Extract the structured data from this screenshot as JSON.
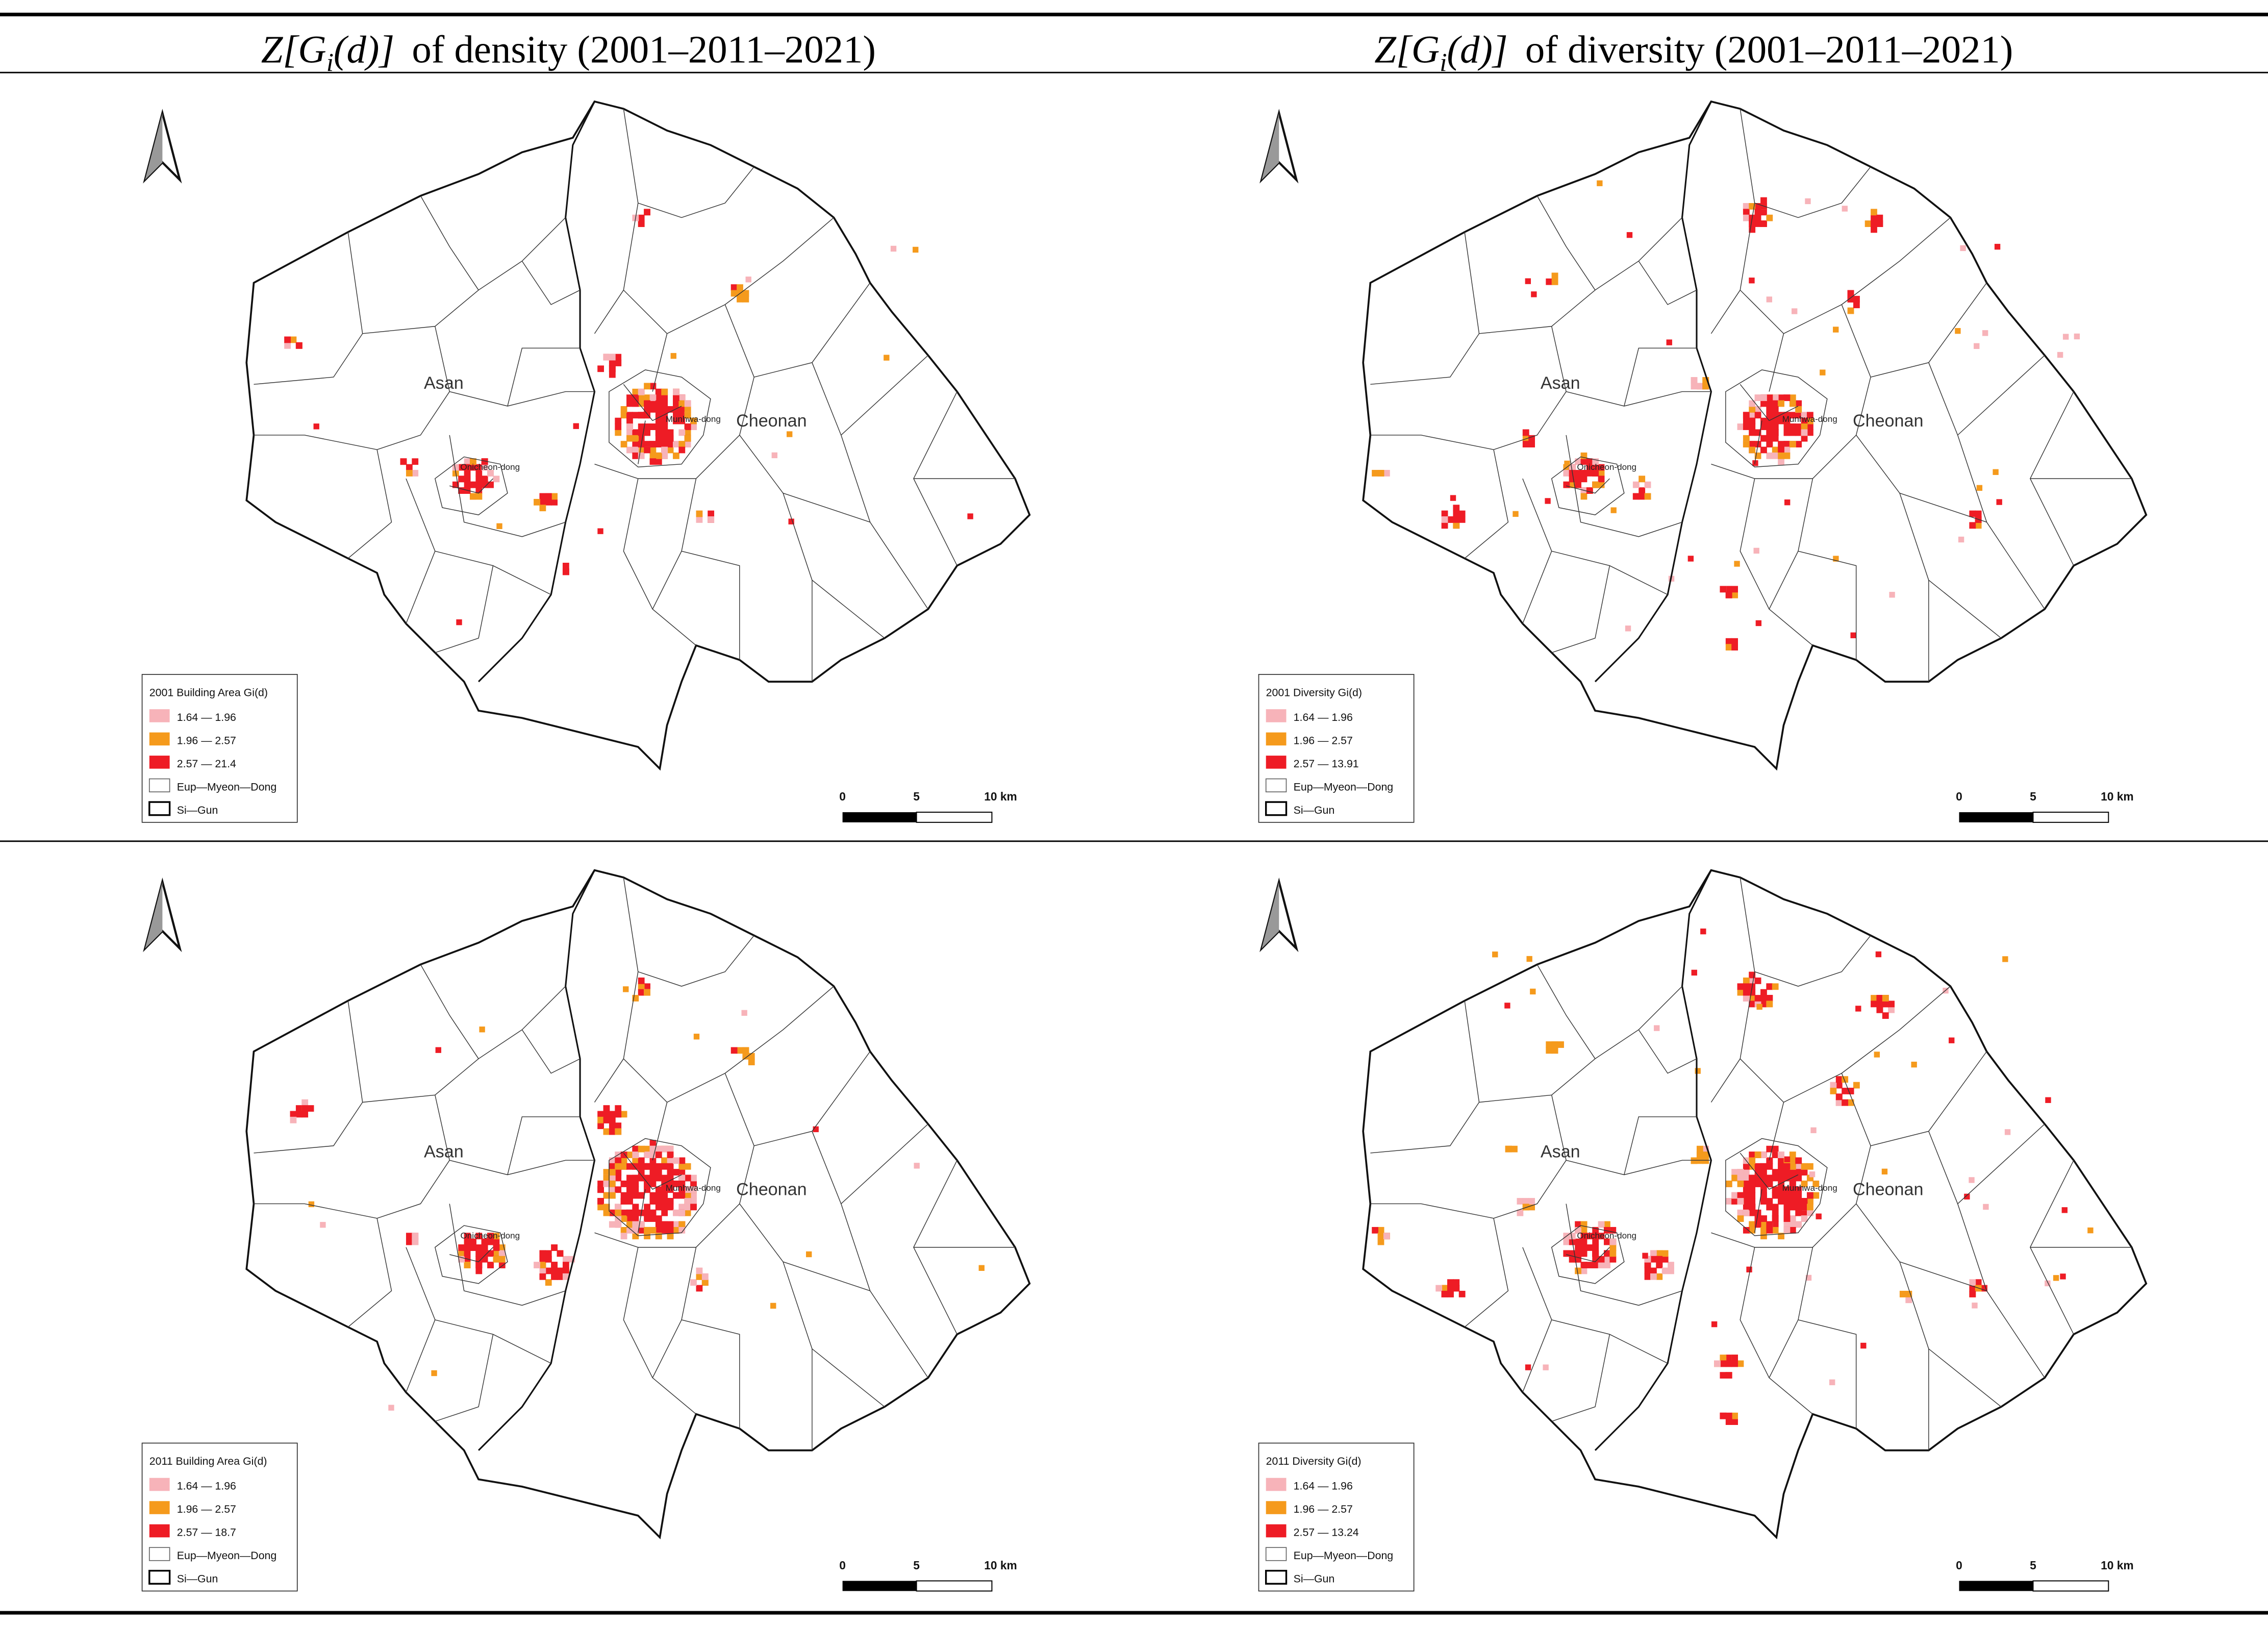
{
  "header": {
    "columns": [
      {
        "z": "Z[G",
        "sub": "i",
        "rest": "(d)]",
        "text": "of density (2001–2011–2021)"
      },
      {
        "z": "Z[G",
        "sub": "i",
        "rest": "(d)]",
        "text": "of diversity (2001–2011–2021)"
      }
    ]
  },
  "panels": [
    {
      "legend": {
        "title": "2001 Building Area Gi(d)",
        "items": [
          "1.64 — 1.96",
          "1.96 — 2.57",
          "2.57 — 21.4",
          "Eup—Myeon—Dong",
          "Si—Gun"
        ]
      },
      "places": [
        "Asan",
        "Cheonan",
        "Onicheon-dong",
        "Munhwa-dong"
      ],
      "scale": [
        "0",
        "5",
        "10 km"
      ]
    },
    {
      "legend": {
        "title": "2001 Diversity Gi(d)",
        "items": [
          "1.64 — 1.96",
          "1.96 — 2.57",
          "2.57 — 13.91",
          "Eup—Myeon—Dong",
          "Si—Gun"
        ]
      },
      "places": [
        "Asan",
        "Cheonan",
        "Onicheon-dong",
        "Munhwa-dong"
      ],
      "scale": [
        "0",
        "5",
        "10 km"
      ]
    },
    {
      "legend": {
        "title": "2011 Building Area Gi(d)",
        "items": [
          "1.64 — 1.96",
          "1.96 — 2.57",
          "2.57 — 18.7",
          "Eup—Myeon—Dong",
          "Si—Gun"
        ]
      },
      "places": [
        "Asan",
        "Cheonan",
        "Onicheon-dong",
        "Munhwa-dong"
      ],
      "scale": [
        "0",
        "5",
        "10 km"
      ]
    },
    {
      "legend": {
        "title": "2011 Diversity Gi(d)",
        "items": [
          "1.64 — 1.96",
          "1.96 — 2.57",
          "2.57 — 13.24",
          "Eup—Myeon—Dong",
          "Si—Gun"
        ]
      },
      "places": [
        "Asan",
        "Cheonan",
        "Onicheon-dong",
        "Munhwa-dong"
      ],
      "scale": [
        "0",
        "5",
        "10 km"
      ]
    }
  ]
}
